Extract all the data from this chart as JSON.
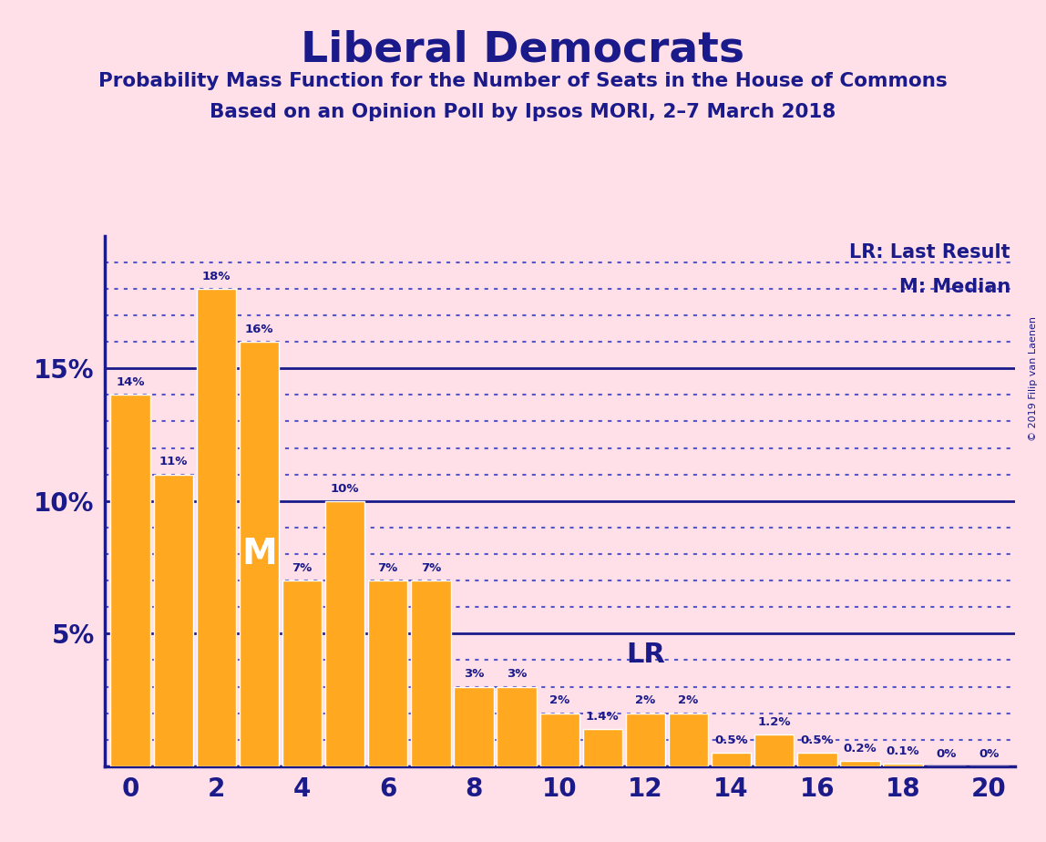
{
  "title": "Liberal Democrats",
  "subtitle1": "Probability Mass Function for the Number of Seats in the House of Commons",
  "subtitle2": "Based on an Opinion Poll by Ipsos MORI, 2–7 March 2018",
  "copyright": "© 2019 Filip van Laenen",
  "background_color": "#FFE0E8",
  "bar_color": "#FFA820",
  "bar_edge_color": "#FFFFFF",
  "axis_color": "#1a1a8a",
  "text_color": "#1a1a8a",
  "title_color": "#1a1a8a",
  "categories": [
    0,
    1,
    2,
    3,
    4,
    5,
    6,
    7,
    8,
    9,
    10,
    11,
    12,
    13,
    14,
    15,
    16,
    17,
    18,
    19,
    20
  ],
  "values": [
    14,
    11,
    18,
    16,
    7,
    10,
    7,
    7,
    3,
    3,
    2,
    1.4,
    2,
    2,
    0.5,
    1.2,
    0.5,
    0.2,
    0.1,
    0,
    0
  ],
  "labels": [
    "14%",
    "11%",
    "18%",
    "16%",
    "7%",
    "10%",
    "7%",
    "7%",
    "3%",
    "3%",
    "2%",
    "1.4%",
    "2%",
    "2%",
    "0.5%",
    "1.2%",
    "0.5%",
    "0.2%",
    "0.1%",
    "0%",
    "0%"
  ],
  "ylim": [
    0,
    20.0
  ],
  "xlim": [
    -0.6,
    20.6
  ],
  "median_x": 3,
  "median_y": 8.0,
  "lr_x": 12,
  "lr_y": 4.2,
  "dotted_line_color": "#5555cc",
  "solid_line_color": "#1a1a8a",
  "solid_line_levels": [
    5,
    10,
    15
  ],
  "dotted_line_levels": [
    1,
    2,
    3,
    4,
    6,
    7,
    8,
    9,
    11,
    12,
    13,
    14,
    16,
    17,
    18,
    19
  ],
  "legend_lr_text": "LR: Last Result",
  "legend_m_text": "M: Median",
  "bar_width": 0.92
}
